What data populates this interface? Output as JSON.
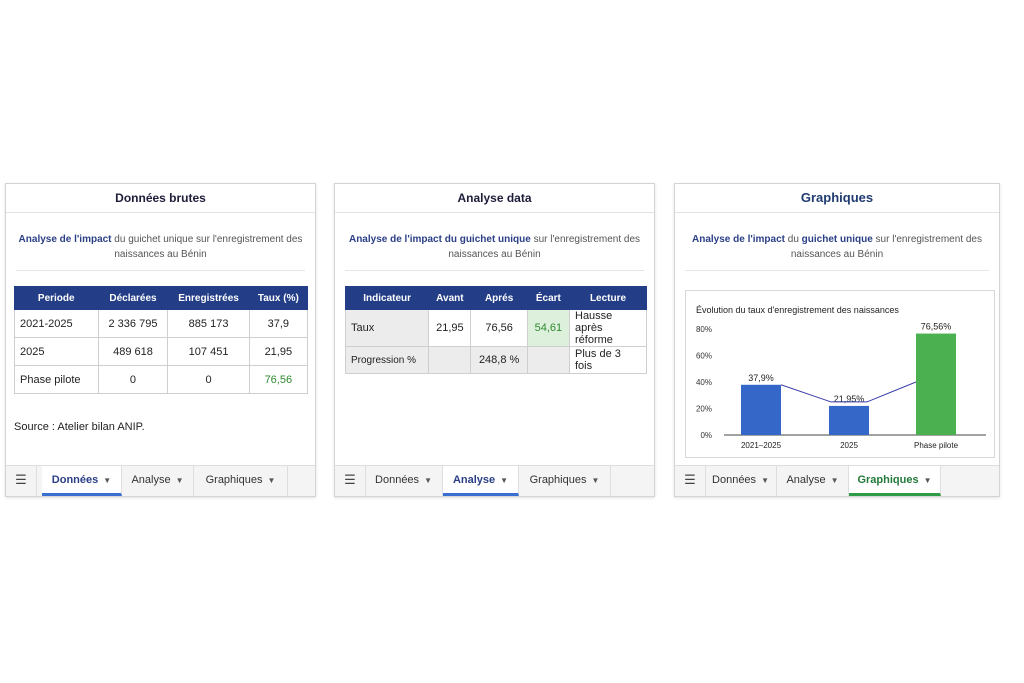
{
  "panels": {
    "donnees": {
      "title": "Données brutes",
      "subtitle_hl": "Analyse de l'impact",
      "subtitle_rest": " du guichet unique sur l'enregistrement des naissances au Bénin",
      "table": {
        "headers": [
          "Periode",
          "Déclarées",
          "Enregistrées",
          "Taux (%)"
        ],
        "rows": [
          [
            "2021-2025",
            "2 336 795",
            "885 173",
            "37,9"
          ],
          [
            "2025",
            "489 618",
            "107 451",
            "21,95"
          ],
          [
            "Phase pilote",
            "0",
            "0",
            "76,56"
          ]
        ]
      },
      "source": "Source : Atelier bilan ANIP.",
      "tabs": [
        "Données",
        "Analyse",
        "Graphiques"
      ]
    },
    "analyse": {
      "title": "Analyse data",
      "subtitle_hl": "Analyse de l'impact du guichet unique",
      "subtitle_rest": " sur l'enregistrement des naissances au Bénin",
      "table": {
        "headers": [
          "Indicateur",
          "Avant",
          "Aprés",
          "Écart",
          "Lecture"
        ],
        "rows": [
          [
            "Taux",
            "21,95",
            "76,56",
            "54,61",
            "Hausse après réforme"
          ],
          [
            "Progression %",
            "",
            "248,8 %",
            "",
            "Plus de 3 fois"
          ]
        ]
      },
      "tabs": [
        "Données",
        "Analyse",
        "Graphiques"
      ]
    },
    "graphiques": {
      "title": "Graphiques",
      "subtitle_hl1": "Analyse de l'impact",
      "subtitle_mid": " du ",
      "subtitle_hl2": "guichet unique",
      "subtitle_rest": " sur l'enregistrement des naissances au Bénin",
      "tabs": [
        "Données",
        "Analyse",
        "Graphiques"
      ]
    }
  },
  "chart_data": {
    "type": "bar",
    "title": "Évolution du taux d'enregistrement des naissances",
    "categories": [
      "2021–2025",
      "2025",
      "Phase pilote"
    ],
    "values": [
      37.9,
      21.95,
      76.56
    ],
    "data_labels": [
      "37,9%",
      "21,95%",
      "76,56%"
    ],
    "colors": [
      "#3467c8",
      "#3467c8",
      "#4bb04f"
    ],
    "yticks": [
      "0%",
      "20%",
      "40%",
      "60%",
      "80%"
    ],
    "ylim": [
      0,
      80
    ],
    "trend_line": true,
    "grid": false
  },
  "colors": {
    "header_blue": "#233e86",
    "accent_blue": "#3a6fd1",
    "accent_green": "#2e9c46"
  },
  "icons": {
    "menu": "hamburger-icon",
    "tab_caret": "caret-down-icon"
  }
}
